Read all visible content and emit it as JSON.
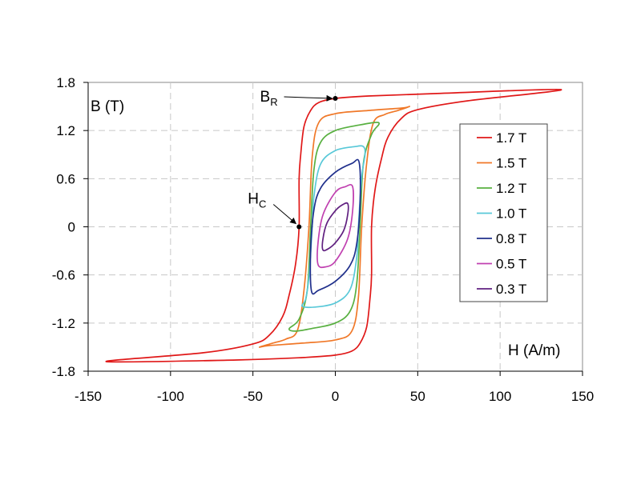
{
  "chart_data": {
    "type": "line",
    "xlabel": "H (A/m)",
    "ylabel": "B (T)",
    "xlim": [
      -150,
      150
    ],
    "ylim": [
      -1.8,
      1.8
    ],
    "xticks": [
      "-150",
      "-100",
      "-50",
      "0",
      "50",
      "100",
      "150"
    ],
    "yticks": [
      "1.8",
      "1.2",
      "0.6",
      "0",
      "-0.6",
      "-1.2",
      "-1.8"
    ],
    "grid": true,
    "legend_position": "right",
    "note": "Each series lists points of the upper (descending) branch as [H, B]; the lower branch is the point-symmetric mirror (-H, -B).",
    "series": [
      {
        "name": "1.7 T",
        "color": "#e01818",
        "upper_branch": [
          [
            137,
            1.71
          ],
          [
            60,
            1.66
          ],
          [
            20,
            1.63
          ],
          [
            0,
            1.6
          ],
          [
            -10,
            1.55
          ],
          [
            -15,
            1.45
          ],
          [
            -19,
            1.25
          ],
          [
            -21,
            0.9
          ],
          [
            -22,
            0.6
          ],
          [
            -22,
            0
          ],
          [
            -24,
            -0.45
          ],
          [
            -28,
            -0.85
          ],
          [
            -32,
            -1.12
          ],
          [
            -40,
            -1.35
          ],
          [
            -50,
            -1.46
          ],
          [
            -80,
            -1.57
          ],
          [
            -139,
            -1.68
          ]
        ]
      },
      {
        "name": "1.5 T",
        "color": "#f07828",
        "upper_branch": [
          [
            45,
            1.5
          ],
          [
            40,
            1.48
          ],
          [
            20,
            1.45
          ],
          [
            0,
            1.41
          ],
          [
            -10,
            1.3
          ],
          [
            -14,
            0.88
          ],
          [
            -16,
            0
          ],
          [
            -19,
            -0.79
          ],
          [
            -23,
            -1.29
          ],
          [
            -30,
            -1.4
          ],
          [
            -38,
            -1.45
          ],
          [
            -46,
            -1.5
          ]
        ]
      },
      {
        "name": "1.2 T",
        "color": "#58b040",
        "upper_branch": [
          [
            26.5,
            1.28
          ],
          [
            24,
            1.3
          ],
          [
            15,
            1.27
          ],
          [
            0,
            1.2
          ],
          [
            -9,
            1.05
          ],
          [
            -13,
            0.71
          ],
          [
            -15,
            0
          ],
          [
            -17,
            -0.79
          ],
          [
            -22,
            -1.15
          ],
          [
            -28,
            -1.27
          ]
        ]
      },
      {
        "name": "1.0 T",
        "color": "#58c8d8",
        "upper_branch": [
          [
            17,
            1.0
          ],
          [
            12,
            1.0
          ],
          [
            0,
            0.95
          ],
          [
            -9,
            0.78
          ],
          [
            -13,
            0.38
          ],
          [
            -14,
            0
          ],
          [
            -16,
            -0.62
          ],
          [
            -18,
            -0.9
          ],
          [
            -20,
            -0.99
          ]
        ]
      },
      {
        "name": "0.8 T",
        "color": "#20308c",
        "upper_branch": [
          [
            14.5,
            0.8
          ],
          [
            10,
            0.79
          ],
          [
            0,
            0.68
          ],
          [
            -9,
            0.48
          ],
          [
            -13,
            0.21
          ],
          [
            -15,
            -0.3
          ],
          [
            -14.5,
            -0.8
          ]
        ]
      },
      {
        "name": "0.5 T",
        "color": "#c040b0",
        "upper_branch": [
          [
            10.5,
            0.5
          ],
          [
            6,
            0.5
          ],
          [
            0,
            0.43
          ],
          [
            -7.5,
            0.15
          ],
          [
            -10.5,
            -0.2
          ],
          [
            -10.5,
            -0.47
          ]
        ]
      },
      {
        "name": "0.3 T",
        "color": "#602080",
        "upper_branch": [
          [
            7.5,
            0.29
          ],
          [
            4,
            0.27
          ],
          [
            0,
            0.2
          ],
          [
            -5,
            0.05
          ],
          [
            -7.5,
            -0.15
          ],
          [
            -7.5,
            -0.29
          ]
        ]
      }
    ],
    "annotations": [
      {
        "label": "B",
        "subscript": "R",
        "point": [
          0,
          1.6
        ]
      },
      {
        "label": "H",
        "subscript": "C",
        "point": [
          -22,
          0
        ]
      }
    ]
  }
}
